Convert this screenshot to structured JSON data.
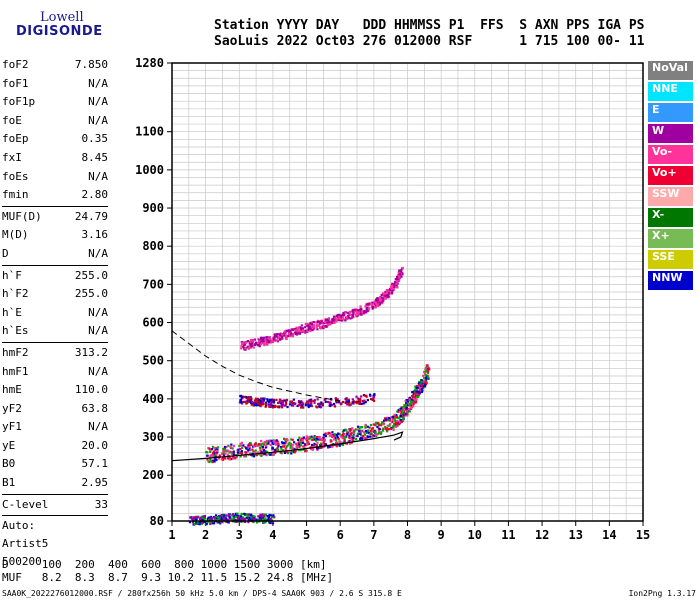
{
  "logo": {
    "line1": "Lowell",
    "line2": "DIGISONDE"
  },
  "header": {
    "line1": "Station YYYY DAY   DDD HHMMSS P1  FFS  S AXN PPS IGA PS",
    "line2": "SaoLuis 2022 Oct03 276 012000 RSF      1 715 100 00- 11"
  },
  "params": [
    {
      "label": "foF2",
      "value": "7.850"
    },
    {
      "label": "foF1",
      "value": "N/A"
    },
    {
      "label": "foF1p",
      "value": "N/A"
    },
    {
      "label": "foE",
      "value": "N/A"
    },
    {
      "label": "foEp",
      "value": "0.35"
    },
    {
      "label": "fxI",
      "value": "8.45"
    },
    {
      "label": "foEs",
      "value": "N/A"
    },
    {
      "label": "fmin",
      "value": "2.80"
    },
    {
      "label": "MUF(D)",
      "value": "24.79"
    },
    {
      "label": "M(D)",
      "value": "3.16"
    },
    {
      "label": "D",
      "value": "N/A"
    },
    {
      "label": "h`F",
      "value": "255.0"
    },
    {
      "label": "h`F2",
      "value": "255.0"
    },
    {
      "label": "h`E",
      "value": "N/A"
    },
    {
      "label": "h`Es",
      "value": "N/A"
    },
    {
      "label": "hmF2",
      "value": "313.2"
    },
    {
      "label": "hmF1",
      "value": "N/A"
    },
    {
      "label": "hmE",
      "value": "110.0"
    },
    {
      "label": "yF2",
      "value": "63.8"
    },
    {
      "label": "yF1",
      "value": "N/A"
    },
    {
      "label": "yE",
      "value": "20.0"
    },
    {
      "label": "B0",
      "value": "57.1"
    },
    {
      "label": "B1",
      "value": "2.95"
    },
    {
      "label": "C-level",
      "value": "33"
    }
  ],
  "auto": {
    "line1": "Auto:",
    "line2": "Artist5",
    "line3": "500200"
  },
  "legend": [
    {
      "label": "NoVal",
      "color": "#808080"
    },
    {
      "label": "NNE",
      "color": "#00e5ff"
    },
    {
      "label": "E",
      "color": "#3399ff"
    },
    {
      "label": "W",
      "color": "#a000a0"
    },
    {
      "label": "Vo-",
      "color": "#ff3399"
    },
    {
      "label": "Vo+",
      "color": "#ee0033"
    },
    {
      "label": "SSW",
      "color": "#ffaaaa"
    },
    {
      "label": "X-",
      "color": "#007700"
    },
    {
      "label": "X+",
      "color": "#77bb55"
    },
    {
      "label": "SSE",
      "color": "#cccc00"
    },
    {
      "label": "NNW",
      "color": "#0000cc"
    }
  ],
  "muf_table": {
    "line1": "D     100  200  400  600  800 1000 1500 3000 [km]",
    "line2": "MUF   8.2  8.3  8.7  9.3 10.2 11.5 15.2 24.8 [MHz]"
  },
  "footer": {
    "left": "SAA0K_2022276012000.RSF / 280fx256h 50 kHz 5.0 km / DPS-4 SAA0K 903 / 2.6 S 315.8 E",
    "right": "Ion2Png 1.3.17"
  },
  "chart_data": {
    "type": "scatter",
    "title": "",
    "xlabel": "",
    "ylabel": "",
    "xlim": [
      1,
      15
    ],
    "ylim": [
      80,
      1280
    ],
    "x_ticks": [
      1,
      2,
      3,
      4,
      5,
      6,
      7,
      8,
      9,
      10,
      11,
      12,
      13,
      14,
      15
    ],
    "y_ticks": [
      80,
      200,
      300,
      400,
      500,
      600,
      700,
      800,
      900,
      1000,
      1100,
      1280
    ],
    "grid": true,
    "clusters": [
      {
        "name": "F2 O-trace",
        "color_mix": [
          "#ff3399",
          "#ee0033",
          "#00aa00",
          "#0000cc"
        ],
        "points": [
          [
            2.0,
            255
          ],
          [
            2.5,
            262
          ],
          [
            3.0,
            268
          ],
          [
            3.5,
            272
          ],
          [
            4.0,
            276
          ],
          [
            4.5,
            280
          ],
          [
            5.0,
            285
          ],
          [
            5.5,
            292
          ],
          [
            6.0,
            300
          ],
          [
            6.5,
            310
          ],
          [
            7.0,
            322
          ],
          [
            7.5,
            340
          ],
          [
            7.8,
            360
          ],
          [
            8.0,
            385
          ],
          [
            8.2,
            410
          ],
          [
            8.4,
            440
          ],
          [
            8.6,
            480
          ]
        ]
      },
      {
        "name": "F2 second hop",
        "color_mix": [
          "#a000a0",
          "#ff3399"
        ],
        "points": [
          [
            3.0,
            540
          ],
          [
            3.5,
            550
          ],
          [
            4.0,
            560
          ],
          [
            4.5,
            575
          ],
          [
            5.0,
            590
          ],
          [
            5.5,
            600
          ],
          [
            6.0,
            615
          ],
          [
            6.5,
            630
          ],
          [
            7.0,
            650
          ],
          [
            7.3,
            670
          ],
          [
            7.6,
            700
          ],
          [
            7.8,
            740
          ]
        ]
      },
      {
        "name": "spread echoes",
        "color_mix": [
          "#a000a0",
          "#0000cc",
          "#cc0000"
        ],
        "points": [
          [
            3.0,
            400
          ],
          [
            3.5,
            395
          ],
          [
            4.0,
            390
          ],
          [
            5.0,
            390
          ],
          [
            6.0,
            395
          ],
          [
            7.0,
            405
          ]
        ]
      },
      {
        "name": "E echoes",
        "color_mix": [
          "#0000cc",
          "#00aa00",
          "#a000a0"
        ],
        "points": [
          [
            1.5,
            82
          ],
          [
            2.0,
            85
          ],
          [
            2.5,
            88
          ],
          [
            3.0,
            92
          ],
          [
            3.5,
            90
          ],
          [
            4.0,
            88
          ]
        ]
      }
    ],
    "profile_solid": [
      [
        1.0,
        238
      ],
      [
        2.0,
        244
      ],
      [
        3.0,
        252
      ],
      [
        4.0,
        260
      ],
      [
        5.0,
        270
      ],
      [
        6.0,
        282
      ],
      [
        7.0,
        296
      ],
      [
        7.6,
        305
      ],
      [
        7.85,
        313
      ],
      [
        7.8,
        300
      ],
      [
        7.6,
        292
      ]
    ],
    "profile_dashed": [
      [
        1.0,
        578
      ],
      [
        1.5,
        545
      ],
      [
        2.0,
        512
      ],
      [
        2.5,
        485
      ],
      [
        3.0,
        462
      ],
      [
        3.5,
        445
      ],
      [
        4.0,
        430
      ],
      [
        4.5,
        420
      ],
      [
        5.0,
        410
      ],
      [
        5.5,
        402
      ],
      [
        6.0,
        395
      ]
    ]
  }
}
